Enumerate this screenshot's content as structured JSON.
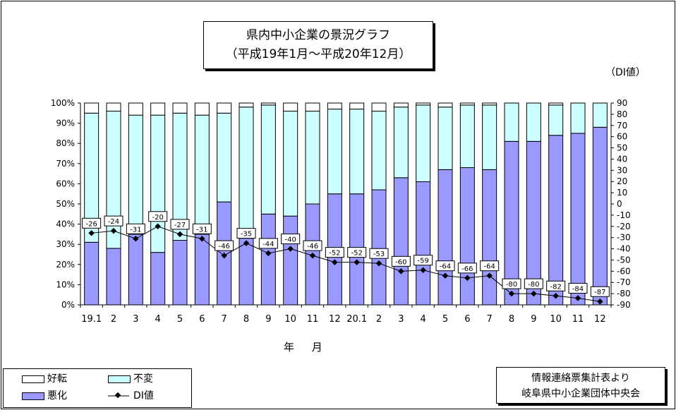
{
  "title": {
    "line1": "県内中小企業の景況グラフ",
    "line2": "（平成19年1月～平成20年12月）"
  },
  "unit_label": "（DI値）",
  "source": {
    "line1": "情報連絡票集計表より",
    "line2": "岐阜県中小企業団体中央会"
  },
  "legend": {
    "good": "好転",
    "same": "不変",
    "bad": "悪化",
    "di": "DI値"
  },
  "colors": {
    "good": "#ffffff",
    "same": "#ccffff",
    "bad": "#9999ff",
    "di_line": "#000000"
  },
  "chart_data": {
    "type": "bar",
    "stacked": true,
    "xlabel": "年 月",
    "ylabel_left": "",
    "ylabel_right": "（DI値）",
    "ylim_left": [
      0,
      100
    ],
    "ylim_right": [
      -90,
      90
    ],
    "left_ticks": [
      "0%",
      "10%",
      "20%",
      "30%",
      "40%",
      "50%",
      "60%",
      "70%",
      "80%",
      "90%",
      "100%"
    ],
    "right_ticks": [
      90,
      80,
      70,
      60,
      50,
      40,
      30,
      20,
      10,
      0,
      -10,
      -20,
      -30,
      -40,
      -50,
      -60,
      -70,
      -80,
      -90
    ],
    "categories": [
      "19.1",
      "2",
      "3",
      "4",
      "5",
      "6",
      "7",
      "8",
      "9",
      "10",
      "11",
      "12",
      "20.1",
      "2",
      "3",
      "4",
      "5",
      "6",
      "7",
      "8",
      "9",
      "10",
      "11",
      "12"
    ],
    "series": [
      {
        "name": "悪化",
        "values": [
          31,
          28,
          35,
          26,
          32,
          35,
          51,
          33,
          45,
          44,
          50,
          55,
          55,
          57,
          63,
          61,
          67,
          68,
          67,
          81,
          81,
          84,
          85,
          88
        ]
      },
      {
        "name": "不変",
        "values": [
          64,
          68,
          59,
          68,
          63,
          59,
          44,
          65,
          54,
          52,
          46,
          42,
          42,
          39,
          35,
          38,
          31,
          31,
          32,
          19,
          19,
          15,
          15,
          12
        ]
      },
      {
        "name": "好転",
        "values": [
          5,
          4,
          6,
          6,
          5,
          6,
          5,
          2,
          1,
          4,
          4,
          3,
          3,
          4,
          2,
          1,
          2,
          1,
          1,
          0,
          0,
          1,
          0,
          0
        ]
      },
      {
        "name": "DI値",
        "axis": "right",
        "values": [
          -26,
          -24,
          -31,
          -20,
          -27,
          -31,
          -46,
          -35,
          -44,
          -40,
          -46,
          -52,
          -52,
          -53,
          -60,
          -59,
          -64,
          -66,
          -64,
          -80,
          -80,
          -82,
          -84,
          -87
        ]
      }
    ],
    "grid": false,
    "legend_position": "bottom-left"
  }
}
